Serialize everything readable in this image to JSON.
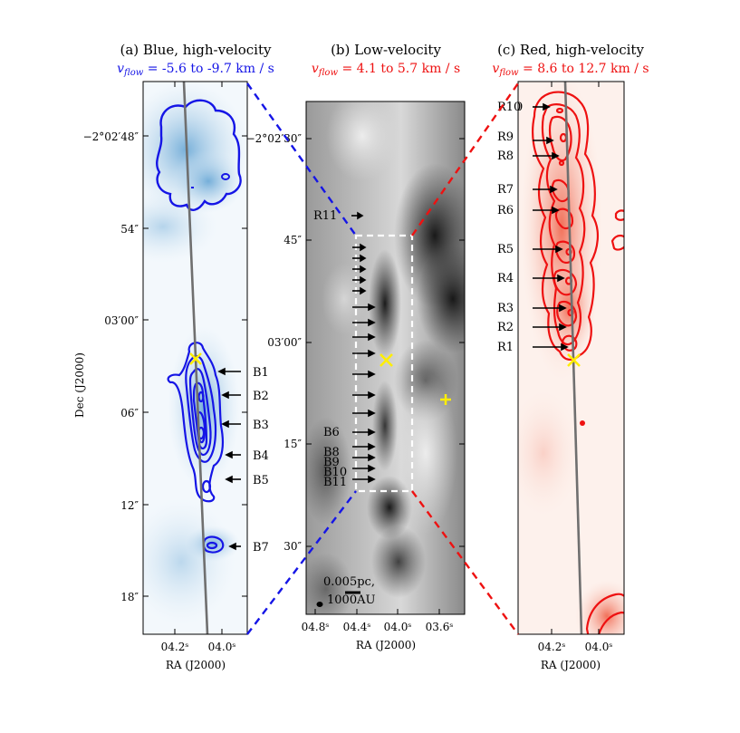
{
  "colors": {
    "blue": "#1515e6",
    "red": "#ee1111",
    "yellow": "#ffee00",
    "dash_white": "#ffffff",
    "axis_line": "#6f6f6f"
  },
  "panels": [
    {
      "id": "a",
      "title": "(a) Blue, high-velocity",
      "velocity_symbol": "v_flow",
      "velocity_range": " = -5.6 to -9.7 km / s"
    },
    {
      "id": "b",
      "title": "(b) Low-velocity",
      "velocity_symbol": "v_flow",
      "velocity_range": " = 4.1 to 5.7 km / s"
    },
    {
      "id": "c",
      "title": "(c) Red, high-velocity",
      "velocity_symbol": "v_flow",
      "velocity_range": " = 8.6 to 12.7 km / s"
    }
  ],
  "axes": {
    "ylabel": "Dec (J2000)",
    "xlabel": "RA (J2000)",
    "dec_ticks_a": [
      "−2°02′48″",
      "54″",
      "03′00″",
      "06″",
      "12″",
      "18″"
    ],
    "dec_ticks_b": [
      "−2°02′30″",
      "45″",
      "03′00″",
      "15″",
      "30″"
    ],
    "ra_ticks_a": [
      "04.2ˢ",
      "04.0ˢ"
    ],
    "ra_ticks_b": [
      "04.8ˢ",
      "04.4ˢ",
      "04.0ˢ",
      "03.6ˢ"
    ],
    "ra_ticks_c": [
      "04.2ˢ",
      "04.0ˢ"
    ]
  },
  "chart_data": [
    {
      "type": "image",
      "panel": "a",
      "title": "(a) Blue, high-velocity",
      "velocity_range_km_s": [
        -5.6,
        -9.7
      ],
      "labels": [
        "B1",
        "B2",
        "B3",
        "B4",
        "B5",
        "B7"
      ]
    },
    {
      "type": "image",
      "panel": "b",
      "title": "(b) Low-velocity",
      "velocity_range_km_s": [
        4.1,
        5.7
      ],
      "labels": [
        "R11",
        "B6",
        "B8",
        "B9",
        "B10",
        "B11"
      ],
      "scalebar": "0.005pc, 1000AU"
    },
    {
      "type": "image",
      "panel": "c",
      "title": "(c) Red, high-velocity",
      "velocity_range_km_s": [
        8.6,
        12.7
      ],
      "labels": [
        "R10",
        "R9",
        "R8",
        "R7",
        "R6",
        "R5",
        "R4",
        "R3",
        "R2",
        "R1"
      ]
    }
  ],
  "labels_a": [
    "B1",
    "B2",
    "B3",
    "B4",
    "B5",
    "B7"
  ],
  "labels_b": [
    "R11",
    "B6",
    "B8",
    "B9",
    "B10",
    "B11"
  ],
  "labels_c": [
    "R10",
    "R9",
    "R8",
    "R7",
    "R6",
    "R5",
    "R4",
    "R3",
    "R2",
    "R1"
  ],
  "scalebar": {
    "line1": "0.005pc,",
    "line2": "1000AU"
  }
}
